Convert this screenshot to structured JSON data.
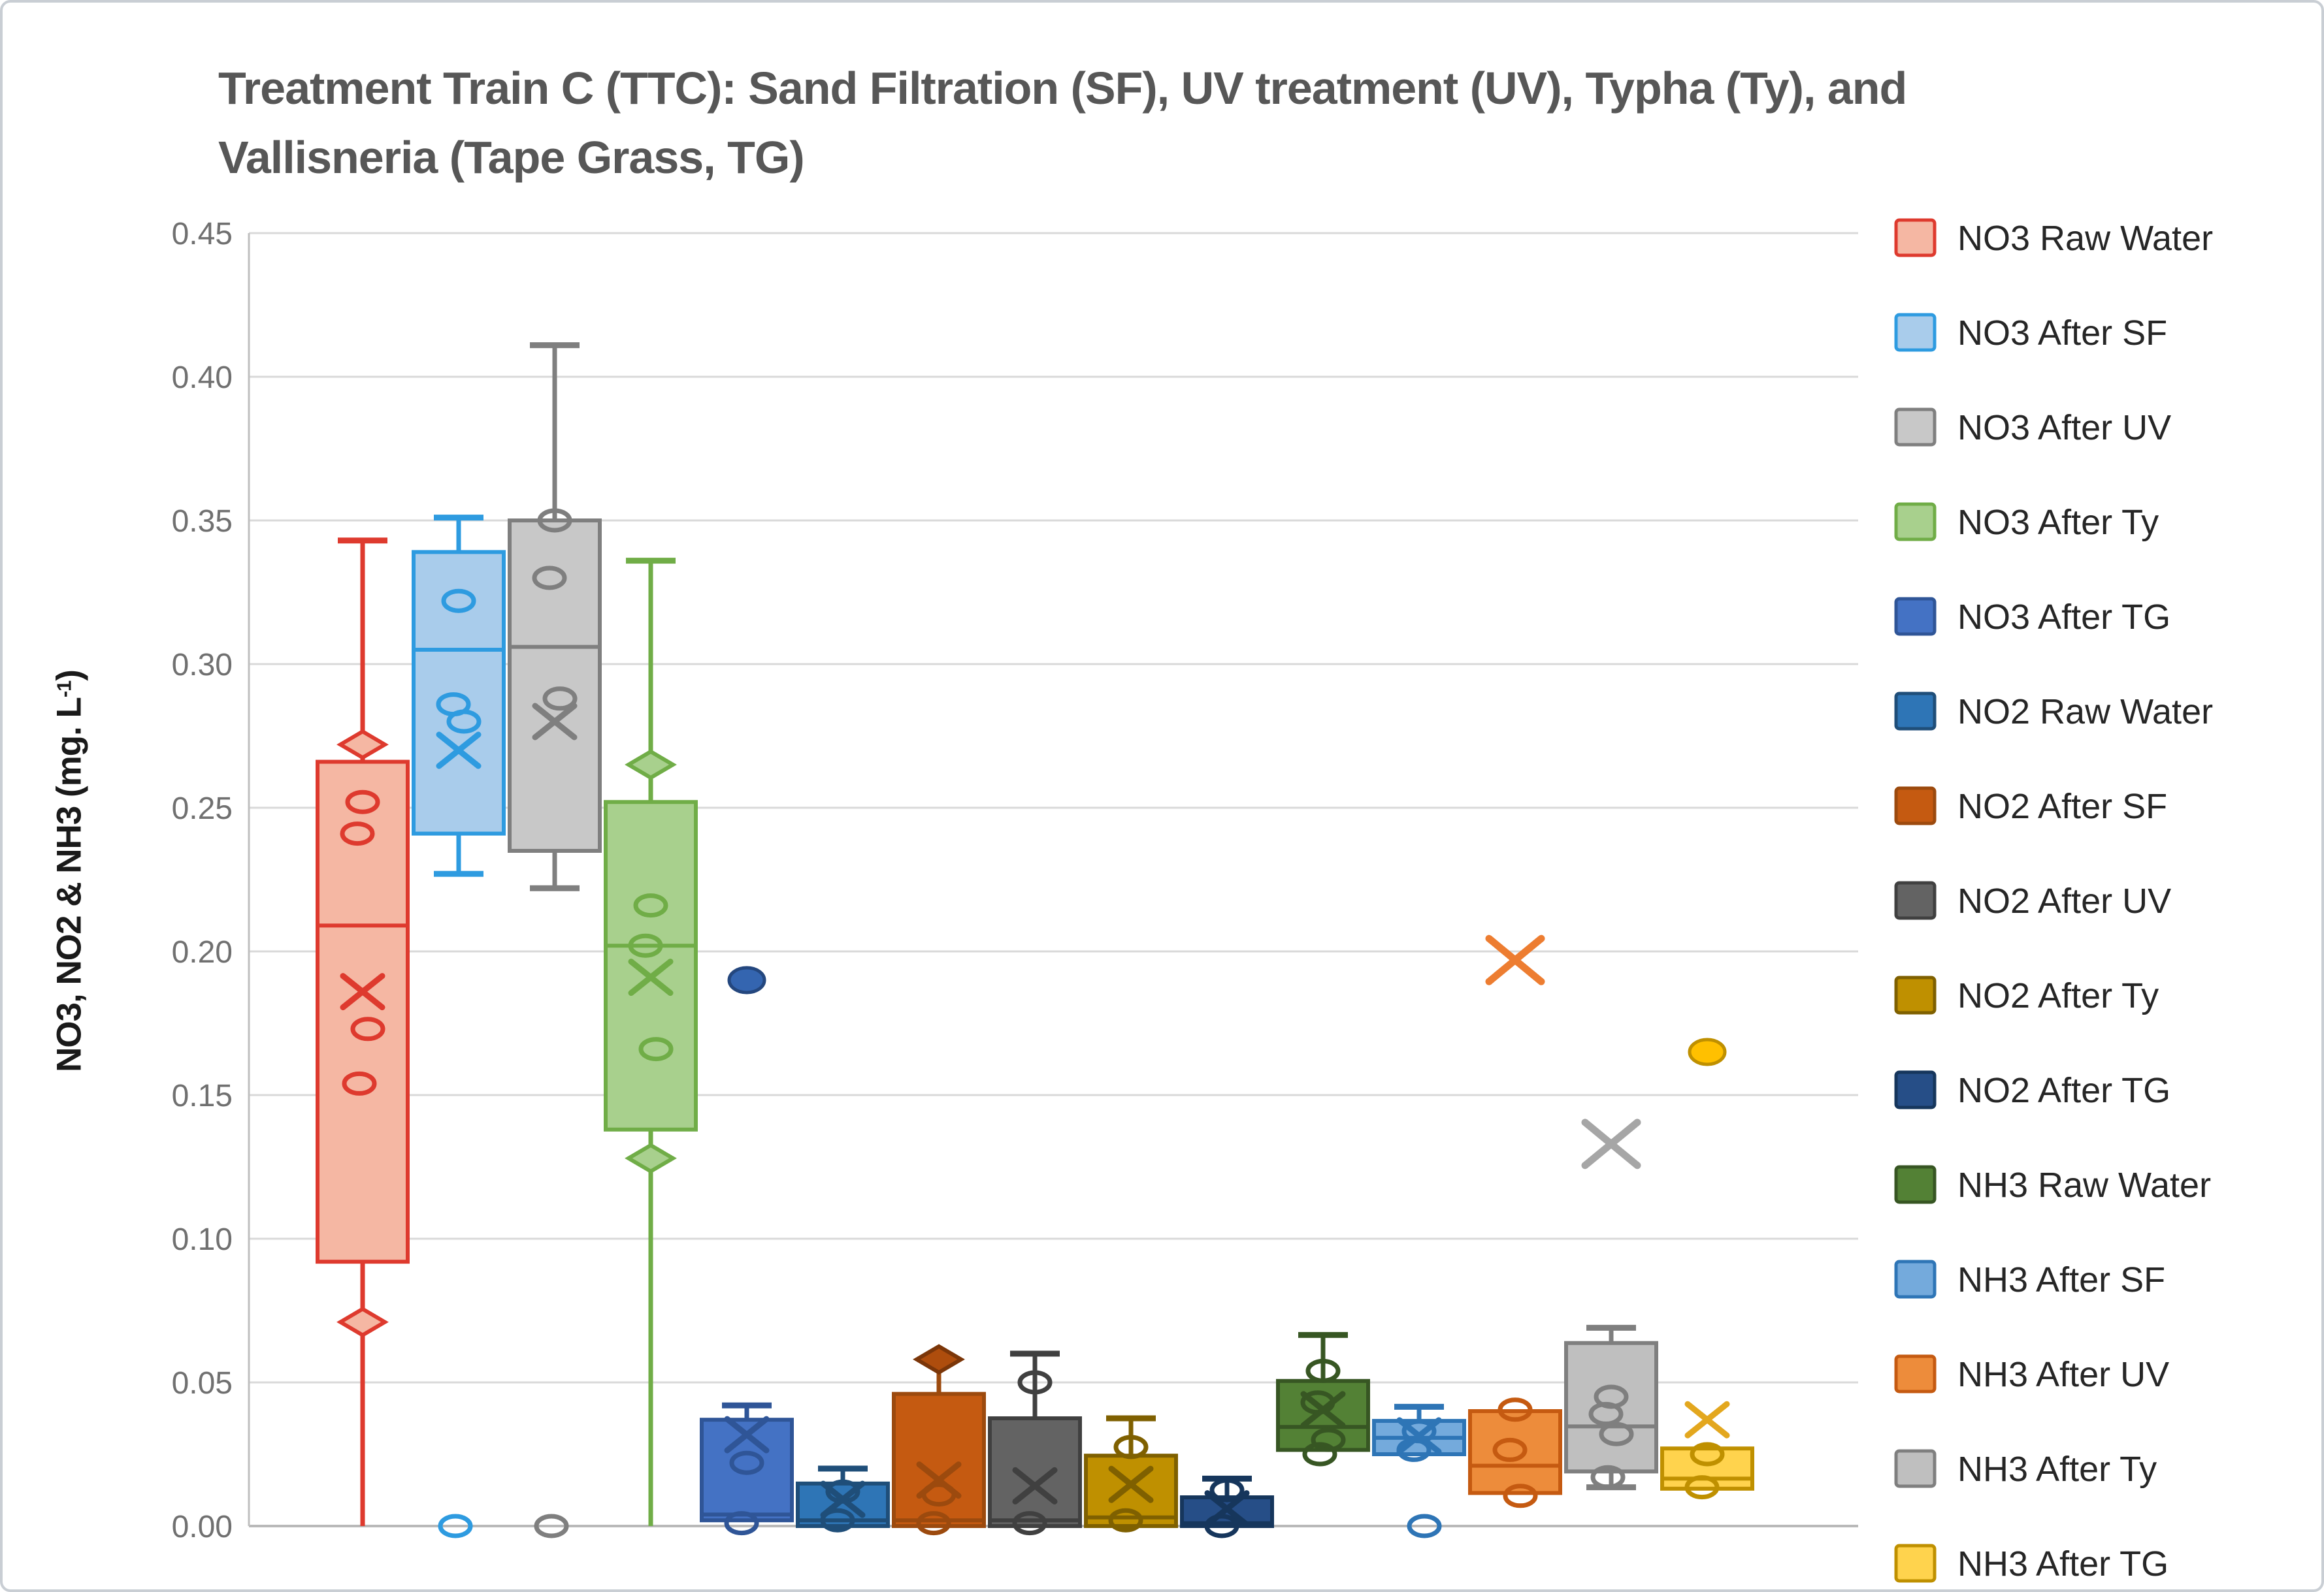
{
  "title": {
    "line1": "Treatment Train C (TTC): Sand Filtration (SF), UV treatment (UV), Typha (Ty), and",
    "line2": "Vallisneria (Tape Grass, TG)"
  },
  "y_axis": {
    "label_pre": "NO3, NO2 & NH3 (mg. L",
    "label_sup": "-1",
    "label_post": ")"
  },
  "colors": {
    "grid": "#d9d9d9",
    "axis_line": "#bfbfbf",
    "tick_text": "#707070",
    "title_text": "#575757",
    "legend_text": "#262626",
    "frame_border": "#c9ced4"
  },
  "chart_data": {
    "type": "boxplot",
    "title": "Treatment Train C (TTC): Sand Filtration (SF), UV treatment (UV), Typha (Ty), and Vallisneria (Tape Grass, TG)",
    "ylabel": "NO3, NO2 & NH3 (mg. L-1)",
    "ylim": [
      0,
      0.45
    ],
    "ytick_step": 0.05,
    "y_tick_labels": [
      "0.45",
      "0.40",
      "0.35",
      "0.30",
      "0.25",
      "0.20",
      "0.15",
      "0.10",
      "0.05",
      "0.00"
    ],
    "grid": true,
    "legend_position": "right",
    "series": [
      {
        "name": "NO3 Raw Water",
        "fill": "#f5b7a3",
        "stroke": "#de3a2e",
        "q1": 0.092,
        "median": 0.209,
        "q3": 0.266,
        "whisker_low": 0.0,
        "whisker_high": 0.343,
        "cap_low": false,
        "cap_high": true,
        "mean": 0.186,
        "circles": [
          0.252,
          0.241,
          0.173,
          0.154
        ],
        "diamonds": [
          0.272,
          0.071
        ]
      },
      {
        "name": "NO3 After SF",
        "fill": "#a9cceb",
        "stroke": "#2e9be0",
        "q1": 0.241,
        "median": 0.305,
        "q3": 0.339,
        "whisker_low": 0.227,
        "whisker_high": 0.351,
        "cap_low": true,
        "cap_high": true,
        "mean": 0.27,
        "circles": [
          0.322,
          0.286,
          0.28,
          0.0
        ]
      },
      {
        "name": "NO3 After UV",
        "fill": "#c8c8c8",
        "stroke": "#7f7f7f",
        "q1": 0.235,
        "median": 0.306,
        "q3": 0.35,
        "whisker_low": 0.222,
        "whisker_high": 0.411,
        "cap_low": true,
        "cap_high": true,
        "mean": 0.28,
        "circles": [
          0.35,
          0.33,
          0.288,
          0.0
        ]
      },
      {
        "name": "NO3 After Ty",
        "fill": "#a8d08d",
        "stroke": "#70ad47",
        "q1": 0.138,
        "median": 0.202,
        "q3": 0.252,
        "whisker_low": 0.0,
        "whisker_high": 0.336,
        "cap_low": false,
        "cap_high": true,
        "mean": 0.191,
        "circles": [
          0.216,
          0.202,
          0.166
        ],
        "diamonds": [
          0.265,
          0.128
        ]
      },
      {
        "name": "NO3 After TG",
        "fill": "#4472c4",
        "stroke": "#2f5597",
        "q1": 0.002,
        "median": 0.004,
        "q3": 0.037,
        "whisker_high": 0.042,
        "cap_high": true,
        "mean": 0.0318,
        "circles": [
          0.022,
          0.001
        ],
        "dots": [
          0.19
        ],
        "dot_fill": "#3465b0",
        "dot_stroke": "#24477e"
      },
      {
        "name": "NO2 Raw Water",
        "fill": "#2e75b6",
        "stroke": "#1f4e79",
        "q1": 0.0,
        "median": 0.002,
        "q3": 0.0148,
        "whisker_high": 0.02,
        "cap_high": true,
        "mean": 0.0093,
        "circles": [
          0.012,
          0.002
        ]
      },
      {
        "name": "NO2 After SF",
        "fill": "#c55a11",
        "stroke": "#9c4a0e",
        "q1": 0.0,
        "median": 0.002,
        "q3": 0.046,
        "whisker_high": 0.058,
        "cap_high": false,
        "mean": 0.016,
        "circles": [
          0.011,
          0.001
        ],
        "diamonds": [
          0.058
        ],
        "diamond_fill": "#ae4d0d",
        "diamond_stroke": "#7b3609"
      },
      {
        "name": "NO2 After UV",
        "fill": "#636363",
        "stroke": "#404040",
        "q1": 0.0,
        "median": 0.002,
        "q3": 0.0375,
        "whisker_high": 0.06,
        "cap_high": true,
        "mean": 0.014,
        "circles": [
          0.05,
          0.001
        ]
      },
      {
        "name": "NO2 After Ty",
        "fill": "#bf9000",
        "stroke": "#7f6000",
        "q1": 0.0,
        "median": 0.003,
        "q3": 0.0245,
        "whisker_high": 0.0375,
        "cap_high": true,
        "mean": 0.0145,
        "circles": [
          0.0275,
          0.002
        ]
      },
      {
        "name": "NO2 After TG",
        "fill": "#264e87",
        "stroke": "#16365c",
        "q1": 0.0,
        "median": 0.001,
        "q3": 0.01,
        "whisker_high": 0.0165,
        "cap_high": true,
        "mean": 0.006,
        "circles": [
          0.0125,
          0.0
        ]
      },
      {
        "name": "NH3 Raw Water",
        "fill": "#538135",
        "stroke": "#375623",
        "q1": 0.0265,
        "median": 0.0345,
        "q3": 0.0505,
        "whisker_high": 0.0665,
        "cap_high": true,
        "mean": 0.0405,
        "circles": [
          0.054,
          0.043,
          0.03,
          0.025
        ]
      },
      {
        "name": "NH3 After SF",
        "fill": "#74aadc",
        "stroke": "#2e75b6",
        "q1": 0.025,
        "median": 0.0307,
        "q3": 0.0366,
        "whisker_high": 0.0415,
        "cap_high": true,
        "mean": 0.0314,
        "circles": [
          0.033,
          0.0265,
          0.0
        ]
      },
      {
        "name": "NH3 After UV",
        "fill": "#ed8c3b",
        "stroke": "#c55a11",
        "q1": 0.0115,
        "median": 0.021,
        "q3": 0.04,
        "mean": 0.197,
        "mean_floating": true,
        "mean_color": "#ed7d31",
        "circles": [
          0.0405,
          0.0265,
          0.0105
        ]
      },
      {
        "name": "NH3 After Ty",
        "fill": "#bfbfbf",
        "stroke": "#7f7f7f",
        "q1": 0.019,
        "median": 0.0347,
        "q3": 0.0637,
        "whisker_low": 0.0135,
        "whisker_high": 0.069,
        "cap_low": true,
        "cap_high": true,
        "mean": 0.133,
        "mean_floating": true,
        "mean_color": "#a6a6a6",
        "circles": [
          0.045,
          0.039,
          0.032,
          0.017
        ]
      },
      {
        "name": "NH3 After TG",
        "fill": "#ffd34d",
        "stroke": "#bf9000",
        "q1": 0.013,
        "median": 0.0165,
        "q3": 0.027,
        "mean": 0.037,
        "mean_color": "#e3a71e",
        "circles": [
          0.025,
          0.0135
        ],
        "dots": [
          0.165
        ],
        "dot_fill": "#ffc000",
        "dot_stroke": "#bf9000"
      }
    ]
  }
}
